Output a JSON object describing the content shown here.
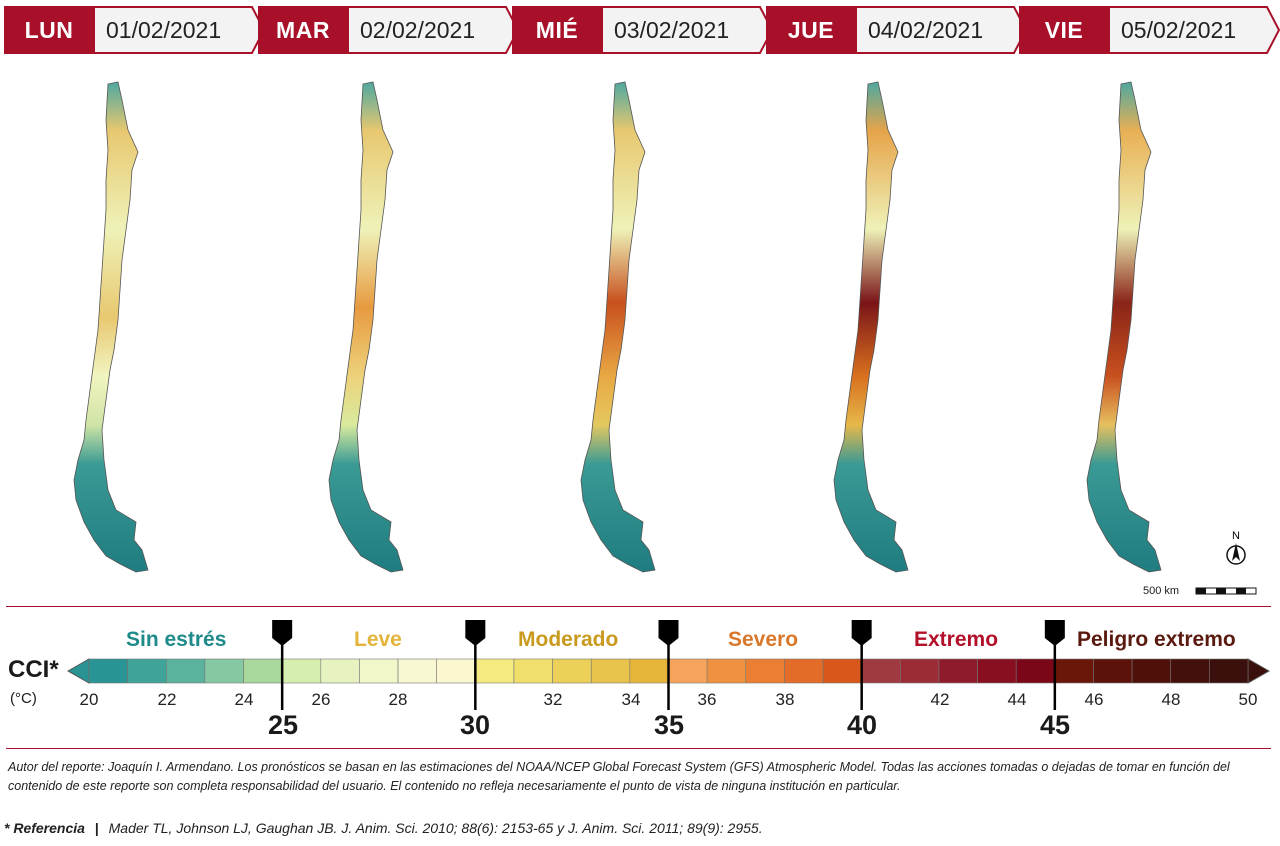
{
  "days": [
    {
      "name": "LUN",
      "date": "01/02/2021"
    },
    {
      "name": "MAR",
      "date": "02/02/2021"
    },
    {
      "name": "MIÉ",
      "date": "03/02/2021"
    },
    {
      "name": "JUE",
      "date": "04/02/2021"
    },
    {
      "name": "VIE",
      "date": "05/02/2021"
    }
  ],
  "map": {
    "north_label": "N",
    "scale_label": "500 km"
  },
  "legend": {
    "title": "CCI*",
    "unit": "(°C)",
    "categories": [
      {
        "label": "Sin estrés",
        "color": "#1f8a8a"
      },
      {
        "label": "Leve",
        "color": "#e3b53b"
      },
      {
        "label": "Moderado",
        "color": "#c99a1d"
      },
      {
        "label": "Severo",
        "color": "#d9782a"
      },
      {
        "label": "Extremo",
        "color": "#b3102a"
      },
      {
        "label": "Peligro extremo",
        "color": "#5a1a10"
      }
    ],
    "ticks": [
      "20",
      "22",
      "24",
      "26",
      "28",
      "32",
      "34",
      "36",
      "38",
      "42",
      "44",
      "46",
      "48",
      "50"
    ],
    "thresholds": [
      "25",
      "30",
      "35",
      "40",
      "45"
    ],
    "swatches": [
      "#2a9494",
      "#3fa39a",
      "#5bb39e",
      "#86c8a2",
      "#a9d89c",
      "#d6eeb0",
      "#e6f3c0",
      "#f1f7c9",
      "#f8f8d2",
      "#fbf7cf",
      "#f5ea80",
      "#f1df6c",
      "#ecd05a",
      "#e8c44c",
      "#e6b63a",
      "#f6a35c",
      "#f0913f",
      "#ea7f32",
      "#e36c28",
      "#d9571a",
      "#9e3a40",
      "#9b2c36",
      "#8e1b2c",
      "#870f20",
      "#7a0618",
      "#6a1609",
      "#5b1309",
      "#4f100a",
      "#44100b",
      "#3a0f0c"
    ]
  },
  "footer": {
    "note": "Autor del reporte: Joaquín I. Armendano. Los pronósticos se basan en las estimaciones del NOAA/NCEP Global Forecast System (GFS) Atmospheric Model. Todas las acciones tomadas o dejadas de tomar en función del contenido de este reporte son completa responsabilidad del usuario. El contenido no refleja necesariamente el punto de vista de ninguna institución en particular.",
    "reference_label": "* Referencia",
    "reference_sep": "|",
    "reference_text": "Mader TL, Johnson LJ, Gaughan JB.  J. Anim. Sci. 2010; 88(6): 2153-65 y J. Anim. Sci. 2011; 89(9): 2955."
  }
}
